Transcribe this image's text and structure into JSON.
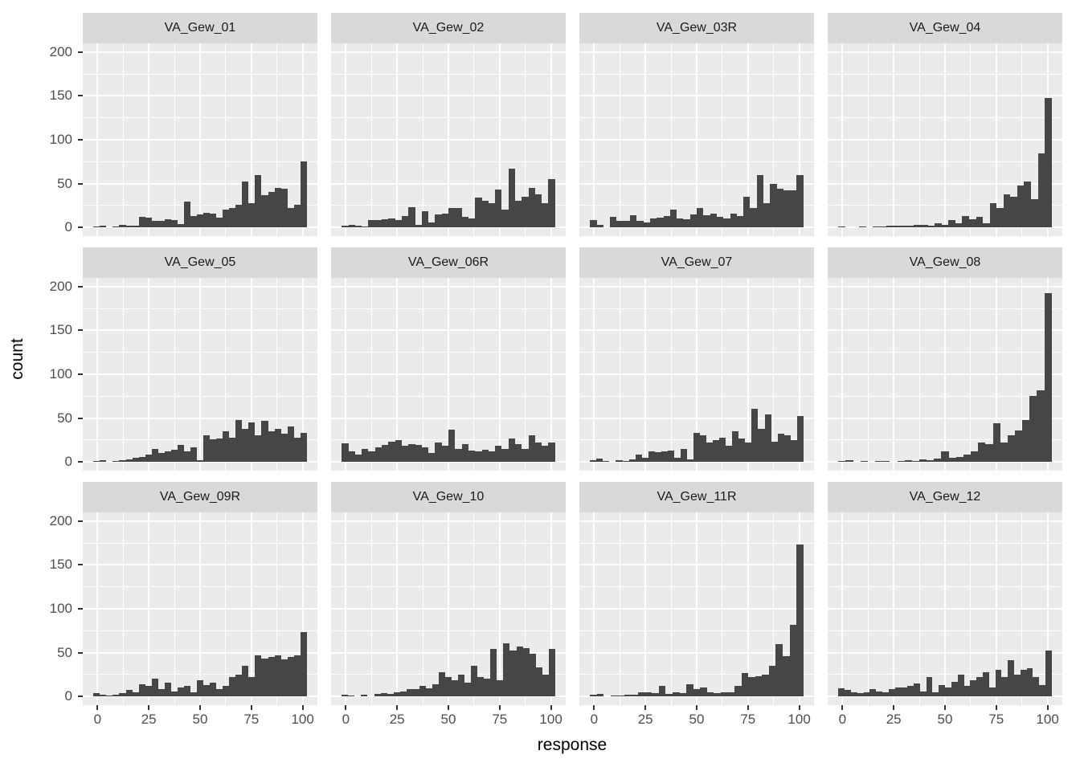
{
  "chart_data": {
    "type": "bar",
    "subtype": "faceted-histogram",
    "title": "",
    "xlabel": "response",
    "ylabel": "count",
    "x_ticks": [
      0,
      25,
      50,
      75,
      100
    ],
    "x_minor_ticks": [
      12.5,
      37.5,
      62.5,
      87.5
    ],
    "y_ticks": [
      200,
      150,
      100,
      50,
      0
    ],
    "y_minor_ticks": [
      25,
      75,
      125,
      175
    ],
    "x_range": [
      -7.2,
      107.2
    ],
    "y_range": [
      -10,
      210
    ],
    "bin_range": [
      -2,
      102
    ],
    "grid": true,
    "legend": "none",
    "facet_rows": 3,
    "facet_cols": 4,
    "facets": [
      {
        "label": "VA_Gew_01",
        "values": [
          1,
          2,
          0,
          1,
          3,
          2,
          2,
          12,
          11,
          7,
          7,
          9,
          8,
          4,
          29,
          13,
          15,
          17,
          16,
          11,
          20,
          22,
          26,
          52,
          28,
          60,
          37,
          40,
          45,
          44,
          22,
          26,
          75
        ]
      },
      {
        "label": "VA_Gew_02",
        "values": [
          2,
          3,
          2,
          1,
          8,
          8,
          9,
          10,
          8,
          13,
          23,
          3,
          18,
          6,
          15,
          16,
          22,
          22,
          12,
          10,
          34,
          30,
          28,
          43,
          20,
          67,
          30,
          35,
          45,
          38,
          28,
          55
        ]
      },
      {
        "label": "VA_Gew_03R",
        "values": [
          8,
          3,
          0,
          12,
          7,
          7,
          14,
          7,
          6,
          10,
          11,
          13,
          20,
          10,
          9,
          15,
          22,
          14,
          16,
          12,
          10,
          16,
          13,
          35,
          22,
          60,
          28,
          50,
          44,
          42,
          42,
          60
        ]
      },
      {
        "label": "VA_Gew_04",
        "values": [
          1,
          0,
          0,
          1,
          0,
          1,
          1,
          2,
          2,
          2,
          2,
          3,
          3,
          2,
          5,
          3,
          8,
          5,
          13,
          9,
          12,
          5,
          28,
          22,
          38,
          35,
          48,
          52,
          32,
          84,
          148
        ]
      },
      {
        "label": "VA_Gew_05",
        "values": [
          1,
          2,
          0,
          1,
          2,
          3,
          5,
          6,
          8,
          15,
          10,
          12,
          14,
          19,
          12,
          17,
          2,
          30,
          26,
          27,
          35,
          28,
          48,
          38,
          45,
          30,
          47,
          35,
          38,
          32,
          40,
          28,
          33
        ]
      },
      {
        "label": "VA_Gew_06R",
        "values": [
          21,
          12,
          8,
          15,
          12,
          17,
          19,
          23,
          25,
          18,
          20,
          19,
          17,
          10,
          22,
          18,
          37,
          15,
          20,
          13,
          12,
          14,
          12,
          18,
          15,
          27,
          20,
          15,
          30,
          22,
          18,
          22
        ]
      },
      {
        "label": "VA_Gew_07",
        "values": [
          2,
          4,
          1,
          0,
          2,
          1,
          3,
          8,
          5,
          12,
          11,
          12,
          13,
          5,
          15,
          3,
          33,
          30,
          22,
          25,
          28,
          18,
          35,
          27,
          22,
          61,
          38,
          54,
          23,
          32,
          30,
          25,
          52
        ]
      },
      {
        "label": "VA_Gew_08",
        "values": [
          1,
          2,
          0,
          1,
          0,
          1,
          1,
          0,
          1,
          2,
          1,
          3,
          2,
          4,
          12,
          5,
          6,
          8,
          12,
          22,
          20,
          44,
          22,
          30,
          36,
          48,
          75,
          82,
          193
        ]
      },
      {
        "label": "VA_Gew_09R",
        "values": [
          4,
          2,
          1,
          2,
          4,
          7,
          5,
          14,
          12,
          20,
          8,
          16,
          6,
          10,
          12,
          5,
          18,
          13,
          16,
          8,
          12,
          22,
          25,
          35,
          22,
          47,
          43,
          45,
          47,
          42,
          45,
          47,
          73
        ]
      },
      {
        "label": "VA_Gew_10",
        "values": [
          2,
          1,
          0,
          2,
          0,
          3,
          4,
          3,
          5,
          6,
          8,
          8,
          12,
          9,
          14,
          28,
          22,
          18,
          25,
          16,
          35,
          22,
          20,
          54,
          18,
          61,
          52,
          57,
          55,
          49,
          33,
          25,
          54
        ]
      },
      {
        "label": "VA_Gew_11R",
        "values": [
          2,
          3,
          0,
          1,
          1,
          2,
          2,
          5,
          5,
          4,
          12,
          3,
          5,
          4,
          14,
          8,
          10,
          5,
          4,
          5,
          5,
          12,
          27,
          22,
          23,
          25,
          35,
          60,
          46,
          82,
          173
        ]
      },
      {
        "label": "VA_Gew_12",
        "values": [
          9,
          7,
          5,
          4,
          5,
          8,
          6,
          5,
          8,
          10,
          10,
          12,
          15,
          6,
          22,
          5,
          13,
          10,
          17,
          25,
          12,
          18,
          22,
          28,
          10,
          30,
          22,
          41,
          25,
          30,
          32,
          22,
          13,
          52
        ]
      }
    ],
    "colors": {
      "bar": "#464646",
      "panel_bg": "#EBEBEB",
      "strip_bg": "#D9D9D9",
      "gridline": "#FFFFFF",
      "tick_mark": "#333333",
      "tick_label": "#4D4D4D",
      "axis_title": "#000000"
    }
  }
}
